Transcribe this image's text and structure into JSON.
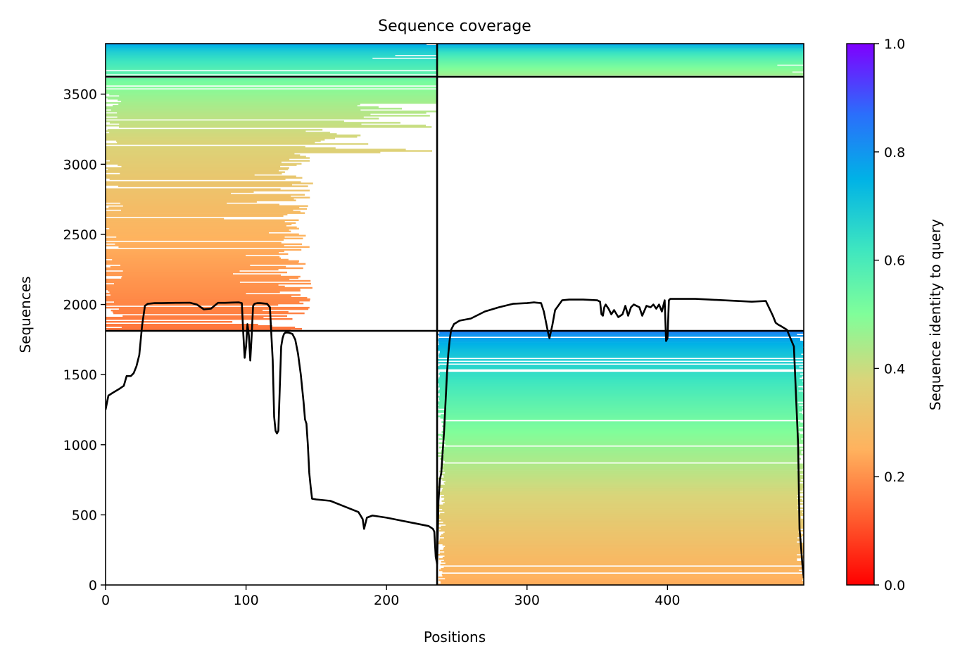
{
  "chart_data": {
    "type": "heatmap",
    "title": "Sequence coverage",
    "xlabel": "Positions",
    "ylabel": "Sequences",
    "xlim": [
      0,
      497
    ],
    "ylim": [
      0,
      3860
    ],
    "xticks": [
      0,
      100,
      200,
      300,
      400
    ],
    "yticks": [
      0,
      500,
      1000,
      1500,
      2000,
      2500,
      3000,
      3500
    ],
    "colorbar": {
      "label": "Sequence identity to query",
      "range": [
        0,
        1
      ],
      "ticks": [
        "0.0",
        "0.2",
        "0.4",
        "0.6",
        "0.8",
        "1.0"
      ],
      "colormap": "rainbow_r"
    },
    "dividers": {
      "x": [
        236
      ],
      "y": [
        1812,
        3624
      ]
    },
    "blocks": [
      {
        "name": "chain1-paired-top",
        "x": [
          0,
          236
        ],
        "y": [
          3624,
          3860
        ],
        "identity_top": 0.78,
        "identity_bottom": 0.55,
        "full_width": true
      },
      {
        "name": "chain2-paired-top",
        "x": [
          236,
          497
        ],
        "y": [
          3624,
          3860
        ],
        "identity_top": 0.78,
        "identity_bottom": 0.45,
        "full_width": true
      },
      {
        "name": "chain1-unpaired",
        "x": [
          0,
          236
        ],
        "y": [
          1812,
          3624
        ],
        "identity_top": 0.55,
        "identity_bottom": 0.16
      },
      {
        "name": "chain2-unpaired",
        "x": [
          236,
          497
        ],
        "y": [
          0,
          1812
        ],
        "identity_top": 0.85,
        "identity_bottom": 0.24
      }
    ],
    "coverage_line": {
      "color": "#000000",
      "x": [
        0,
        2,
        5,
        10,
        13,
        15,
        18,
        20,
        22,
        24,
        26,
        28,
        30,
        35,
        40,
        50,
        60,
        65,
        70,
        75,
        80,
        85,
        90,
        95,
        97,
        98,
        99,
        100,
        101,
        102,
        103,
        104,
        105,
        106,
        107,
        108,
        110,
        115,
        117,
        119,
        120,
        121,
        122,
        123,
        124,
        125,
        126,
        127,
        128,
        130,
        133,
        135,
        137,
        139,
        141,
        142,
        143,
        144,
        145,
        146,
        147,
        150,
        160,
        170,
        180,
        183,
        184,
        186,
        190,
        200,
        210,
        220,
        230,
        233,
        234,
        235,
        236,
        237,
        238,
        239,
        240,
        241,
        242,
        243,
        244,
        245,
        246,
        248,
        252,
        260,
        270,
        280,
        290,
        300,
        305,
        310,
        312,
        314,
        315,
        316,
        318,
        320,
        325,
        330,
        340,
        350,
        352,
        353,
        354,
        355,
        356,
        358,
        360,
        362,
        365,
        368,
        370,
        372,
        374,
        376,
        380,
        382,
        385,
        388,
        390,
        392,
        394,
        396,
        398,
        399,
        400,
        401,
        402,
        405,
        410,
        420,
        430,
        440,
        450,
        460,
        470,
        475,
        477,
        479,
        480,
        485,
        490,
        493,
        494,
        495,
        496,
        497
      ],
      "y": [
        1250,
        1350,
        1370,
        1400,
        1420,
        1490,
        1490,
        1510,
        1560,
        1640,
        1850,
        1990,
        2005,
        2010,
        2010,
        2012,
        2013,
        2000,
        1965,
        1970,
        2012,
        2012,
        2014,
        2015,
        2010,
        1800,
        1620,
        1700,
        1860,
        1780,
        1600,
        1780,
        1990,
        2005,
        2008,
        2010,
        2010,
        2005,
        1980,
        1600,
        1200,
        1100,
        1080,
        1100,
        1400,
        1700,
        1760,
        1790,
        1800,
        1800,
        1790,
        1750,
        1650,
        1500,
        1300,
        1180,
        1150,
        1000,
        800,
        700,
        615,
        610,
        600,
        560,
        520,
        470,
        400,
        480,
        495,
        480,
        460,
        440,
        420,
        400,
        380,
        200,
        150,
        600,
        750,
        800,
        950,
        1100,
        1300,
        1500,
        1650,
        1750,
        1820,
        1860,
        1885,
        1900,
        1950,
        1980,
        2005,
        2010,
        2015,
        2010,
        1950,
        1850,
        1800,
        1760,
        1850,
        1960,
        2030,
        2035,
        2035,
        2030,
        2020,
        1930,
        1920,
        1980,
        2000,
        1970,
        1930,
        1960,
        1910,
        1930,
        1990,
        1920,
        1980,
        2000,
        1980,
        1920,
        1990,
        1980,
        2000,
        1970,
        2000,
        1950,
        2030,
        1740,
        1760,
        2030,
        2040,
        2040,
        2040,
        2040,
        2035,
        2030,
        2025,
        2020,
        2025,
        1920,
        1870,
        1855,
        1850,
        1820,
        1700,
        1000,
        400,
        280,
        150,
        50
      ]
    }
  }
}
